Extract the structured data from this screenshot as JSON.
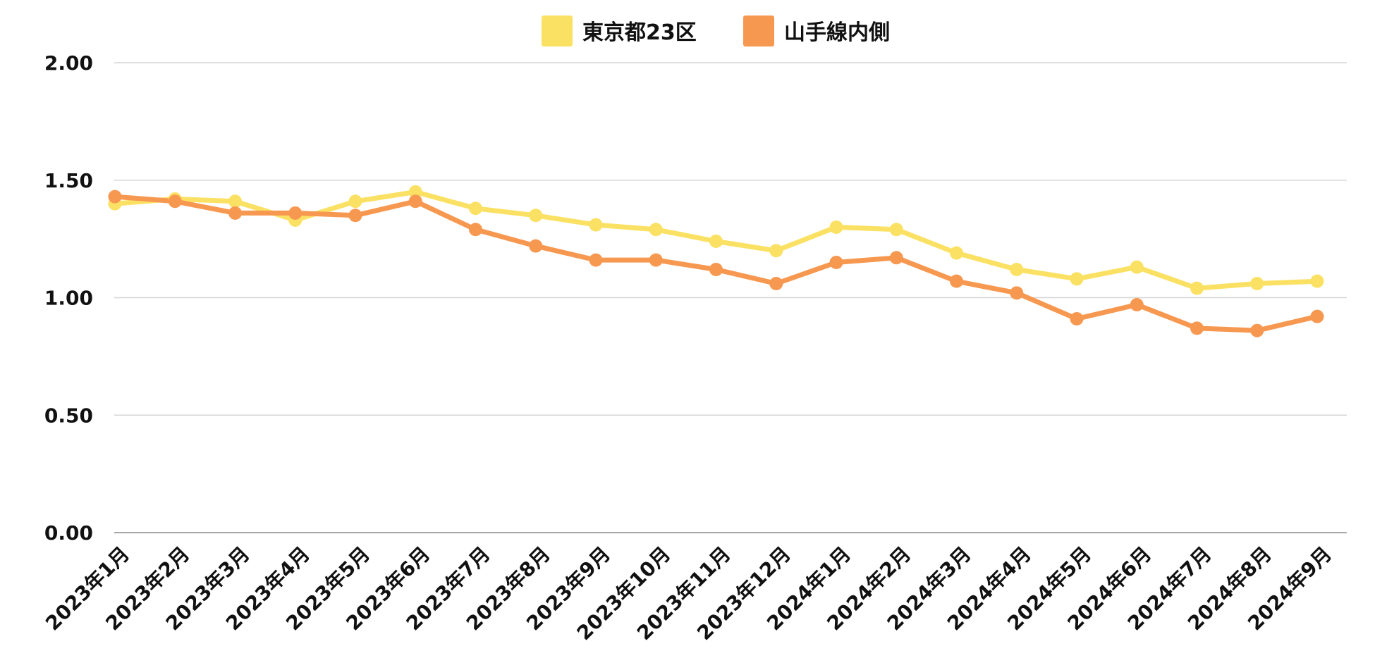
{
  "chart_data": {
    "type": "line",
    "title": "",
    "xlabel": "",
    "ylabel": "",
    "ylim": [
      0,
      2
    ],
    "yticks": [
      0,
      0.5,
      1,
      1.5,
      2
    ],
    "ytick_labels": [
      "0.00",
      "0.50",
      "1.00",
      "1.50",
      "2.00"
    ],
    "grid": true,
    "legend_position": "top-center",
    "categories": [
      "2023年1月",
      "2023年2月",
      "2023年3月",
      "2023年4月",
      "2023年5月",
      "2023年6月",
      "2023年7月",
      "2023年8月",
      "2023年9月",
      "2023年10月",
      "2023年11月",
      "2023年12月",
      "2024年1月",
      "2024年2月",
      "2024年3月",
      "2024年4月",
      "2024年5月",
      "2024年6月",
      "2024年7月",
      "2024年8月",
      "2024年9月"
    ],
    "series": [
      {
        "name": "東京都23区",
        "color": "#fbe163",
        "values": [
          1.4,
          1.42,
          1.41,
          1.33,
          1.41,
          1.45,
          1.38,
          1.35,
          1.31,
          1.29,
          1.24,
          1.2,
          1.3,
          1.29,
          1.19,
          1.12,
          1.08,
          1.13,
          1.04,
          1.06,
          1.07
        ]
      },
      {
        "name": "山手線内側",
        "color": "#f79851",
        "values": [
          1.43,
          1.41,
          1.36,
          1.36,
          1.35,
          1.41,
          1.29,
          1.22,
          1.16,
          1.16,
          1.12,
          1.06,
          1.15,
          1.17,
          1.07,
          1.02,
          0.91,
          0.97,
          0.87,
          0.86,
          0.92
        ]
      }
    ]
  }
}
